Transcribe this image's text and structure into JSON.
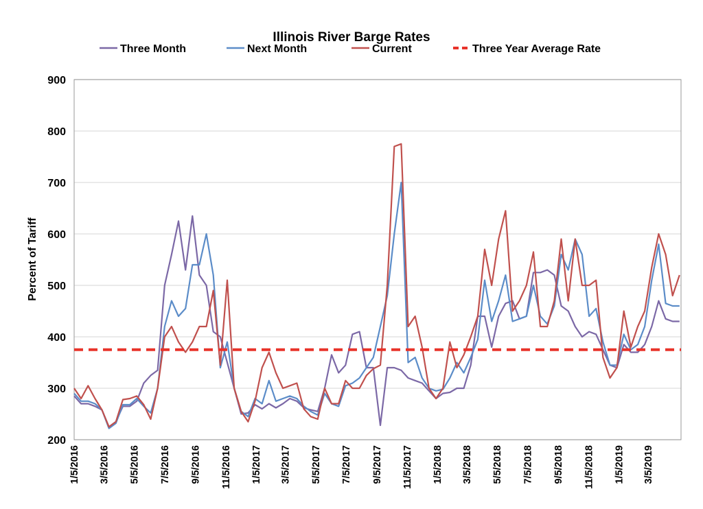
{
  "chart_data": {
    "type": "line",
    "title": "Illinois River Barge Rates",
    "xlabel": "",
    "ylabel": "Percent of Tariff",
    "ylim": [
      200,
      900
    ],
    "yticks": [
      "200",
      "300",
      "400",
      "500",
      "600",
      "700",
      "800",
      "900"
    ],
    "xlim": [
      "2016-01-05",
      "2019-05-10"
    ],
    "xticks": [
      "1/5/2016",
      "3/5/2016",
      "5/5/2016",
      "7/5/2016",
      "9/5/2016",
      "11/5/2016",
      "1/5/2017",
      "3/5/2017",
      "5/5/2017",
      "7/5/2017",
      "9/5/2017",
      "11/5/2017",
      "1/5/2018",
      "3/5/2018",
      "5/5/2018",
      "7/5/2018",
      "9/5/2018",
      "11/5/2018",
      "1/5/2019",
      "3/5/2019"
    ],
    "grid": "horizontal",
    "legend": "top",
    "x": [
      "2016-01-05",
      "2016-01-19",
      "2016-02-02",
      "2016-02-16",
      "2016-03-01",
      "2016-03-15",
      "2016-03-29",
      "2016-04-12",
      "2016-04-26",
      "2016-05-10",
      "2016-05-24",
      "2016-06-07",
      "2016-06-21",
      "2016-07-05",
      "2016-07-19",
      "2016-08-02",
      "2016-08-16",
      "2016-08-30",
      "2016-09-13",
      "2016-09-27",
      "2016-10-11",
      "2016-10-25",
      "2016-11-08",
      "2016-11-22",
      "2016-12-06",
      "2016-12-20",
      "2017-01-03",
      "2017-01-17",
      "2017-01-31",
      "2017-02-14",
      "2017-02-28",
      "2017-03-14",
      "2017-03-28",
      "2017-04-11",
      "2017-04-25",
      "2017-05-09",
      "2017-05-23",
      "2017-06-06",
      "2017-06-20",
      "2017-07-04",
      "2017-07-18",
      "2017-08-01",
      "2017-08-15",
      "2017-08-29",
      "2017-09-12",
      "2017-09-26",
      "2017-10-10",
      "2017-10-24",
      "2017-11-07",
      "2017-11-21",
      "2017-12-05",
      "2017-12-19",
      "2018-01-02",
      "2018-01-16",
      "2018-01-30",
      "2018-02-13",
      "2018-02-27",
      "2018-03-13",
      "2018-03-27",
      "2018-04-10",
      "2018-04-24",
      "2018-05-08",
      "2018-05-22",
      "2018-06-05",
      "2018-06-19",
      "2018-07-03",
      "2018-07-17",
      "2018-07-31",
      "2018-08-14",
      "2018-08-28",
      "2018-09-11",
      "2018-09-25",
      "2018-10-09",
      "2018-10-23",
      "2018-11-06",
      "2018-11-20",
      "2018-12-04",
      "2018-12-18",
      "2019-01-01",
      "2019-01-15",
      "2019-01-29",
      "2019-02-12",
      "2019-02-26",
      "2019-03-12",
      "2019-03-26",
      "2019-04-09",
      "2019-04-23",
      "2019-05-07"
    ],
    "series": [
      {
        "name": "Three Month",
        "color": "#7b68a6",
        "values": [
          285,
          270,
          270,
          265,
          258,
          225,
          235,
          265,
          265,
          275,
          310,
          325,
          335,
          500,
          560,
          625,
          530,
          635,
          520,
          500,
          410,
          400,
          350,
          300,
          250,
          252,
          268,
          260,
          270,
          262,
          270,
          280,
          275,
          262,
          258,
          255,
          300,
          365,
          330,
          345,
          405,
          410,
          340,
          340,
          228,
          340,
          340,
          335,
          320,
          315,
          310,
          295,
          280,
          290,
          292,
          300,
          300,
          345,
          440,
          440,
          380,
          440,
          465,
          470,
          435,
          440,
          525,
          525,
          530,
          520,
          460,
          450,
          420,
          400,
          410,
          405,
          375,
          345,
          340,
          385,
          370,
          370,
          385,
          420,
          470,
          435,
          430,
          430
        ]
      },
      {
        "name": "Next Month",
        "color": "#5b8cc8",
        "values": [
          290,
          275,
          275,
          270,
          258,
          222,
          232,
          268,
          268,
          280,
          265,
          252,
          300,
          420,
          470,
          440,
          455,
          540,
          540,
          600,
          520,
          340,
          390,
          300,
          255,
          245,
          280,
          270,
          315,
          275,
          280,
          285,
          280,
          265,
          255,
          248,
          290,
          270,
          265,
          305,
          310,
          320,
          340,
          360,
          420,
          480,
          600,
          700,
          350,
          360,
          320,
          300,
          295,
          298,
          320,
          350,
          330,
          360,
          395,
          510,
          430,
          470,
          520,
          430,
          435,
          440,
          500,
          440,
          425,
          460,
          560,
          530,
          590,
          560,
          440,
          455,
          390,
          345,
          345,
          405,
          375,
          385,
          420,
          510,
          580,
          465,
          460,
          460
        ]
      },
      {
        "name": "Current",
        "color": "#c0504d",
        "values": [
          300,
          280,
          305,
          280,
          258,
          225,
          235,
          278,
          280,
          285,
          268,
          240,
          300,
          400,
          420,
          390,
          370,
          390,
          420,
          420,
          490,
          345,
          510,
          300,
          255,
          235,
          275,
          340,
          370,
          330,
          300,
          305,
          310,
          260,
          245,
          240,
          300,
          270,
          270,
          315,
          300,
          300,
          325,
          338,
          345,
          500,
          770,
          775,
          420,
          440,
          380,
          300,
          280,
          300,
          390,
          340,
          365,
          400,
          440,
          570,
          500,
          590,
          645,
          450,
          470,
          500,
          565,
          420,
          420,
          470,
          590,
          470,
          590,
          500,
          500,
          510,
          360,
          320,
          340,
          450,
          380,
          420,
          450,
          535,
          600,
          560,
          480,
          520
        ]
      },
      {
        "name": "Three Year Average Rate",
        "color": "#e8332a",
        "style": "dashed",
        "value": 375
      }
    ]
  }
}
